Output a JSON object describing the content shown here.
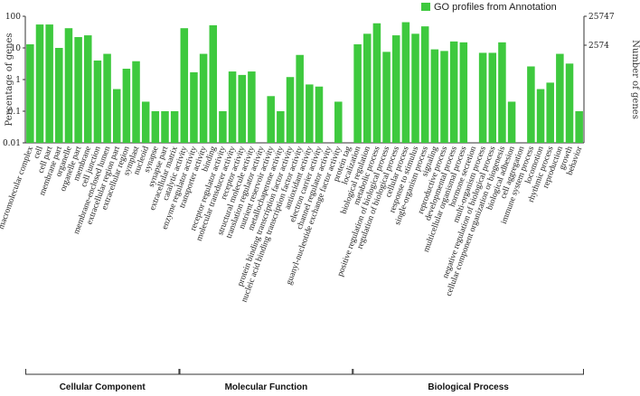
{
  "chart_data": {
    "type": "bar",
    "title": "",
    "legend": {
      "label": "GO profiles from Annotation",
      "color": "#3ec93e",
      "placement": "top-right"
    },
    "ylabel": "Percentage of genes",
    "y2label": "Number of genes",
    "yscale": "log",
    "ylim": [
      0.01,
      100
    ],
    "yticks": [
      "100",
      "10",
      "1",
      "0.1",
      "0.01"
    ],
    "y2ticks": [
      "25747",
      "2574"
    ],
    "bar_color": "#3ec93e",
    "groups": [
      {
        "name": "Cellular Component",
        "categories": [
          "macromolecular complex",
          "cell",
          "cell part",
          "membrane part",
          "organelle",
          "organelle part",
          "membrane",
          "cell junction",
          "membrane-enclosed lumen",
          "extracellular region part",
          "extracellular region",
          "symplast",
          "nucleoid",
          "synapse",
          "synapse part",
          "extracellular matrix"
        ],
        "values": [
          13,
          55,
          55,
          10,
          42,
          22,
          25,
          4,
          6.5,
          0.5,
          2.2,
          3.8,
          0.2,
          0.1,
          0.1,
          0.1
        ]
      },
      {
        "name": "Molecular Function",
        "categories": [
          "catalytic activity",
          "enzyme regulator activity",
          "transporter activity",
          "binding",
          "receptor regulator activity",
          "molecular transducer activity",
          "receptor activity",
          "structural molecule activity",
          "translation regulator activity",
          "nutrient reservoir activity",
          "metallochaperone activity",
          "protein binding transcription factor activity",
          "nucleic acid binding transcription factor activity",
          "antioxidant activity",
          "electron carrier activity",
          "channel regulator activity",
          "guanyl-nucleotide exchange factor activity",
          "protein tag"
        ],
        "values": [
          42,
          1.7,
          6.5,
          52,
          0.1,
          1.8,
          1.4,
          1.8,
          0.0,
          0.3,
          0.1,
          1.2,
          6.0,
          0.7,
          0.6,
          0.0,
          0.2,
          0.0
        ]
      },
      {
        "name": "Biological Process",
        "categories": [
          "localization",
          "biological regulation",
          "metabolic process",
          "positive regulation of biological process",
          "regulation of biological process",
          "cellular process",
          "response to stimulus",
          "single-organism process",
          "signaling",
          "reproductive process",
          "developmental process",
          "multicellular organismal process",
          "hormone secretion",
          "multi-organism process",
          "negative regulation of biological process",
          "cellular component organization or biogenesis",
          "biological adhesion",
          "cell aggregation",
          "immune system process",
          "locomotion",
          "rhythmic process",
          "reproduction",
          "growth",
          "behavior"
        ],
        "values": [
          13,
          28,
          60,
          7.5,
          25,
          65,
          28,
          48,
          9,
          8,
          16,
          15,
          0.0,
          7,
          7,
          15,
          0.2,
          0.0,
          2.6,
          0.5,
          0.8,
          6.5,
          3.2,
          0.1
        ]
      }
    ]
  }
}
